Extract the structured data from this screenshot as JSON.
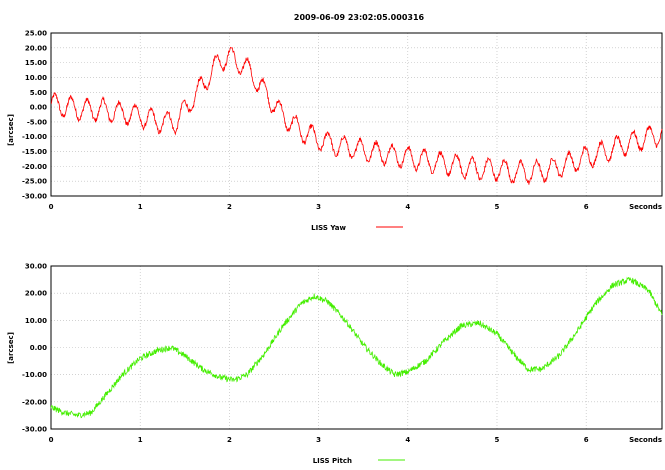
{
  "title": "2009-06-09 23:02:05.000316",
  "chart_data": [
    {
      "type": "line",
      "ylabel": "[arcsec]",
      "xlabel": "Seconds",
      "xlim": [
        0,
        6.85
      ],
      "ylim": [
        -30,
        25
      ],
      "x_ticks": [
        0,
        1,
        2,
        3,
        4,
        5,
        6
      ],
      "y_ticks": [
        "25.00",
        "20.00",
        "15.00",
        "10.00",
        "5.00",
        "0.00",
        "-5.00",
        "-10.00",
        "-15.00",
        "-20.00",
        "-25.00",
        "-30.00"
      ],
      "y_tick_values": [
        25,
        20,
        15,
        10,
        5,
        0,
        -5,
        -10,
        -15,
        -20,
        -25,
        -30
      ],
      "grid": true,
      "legend_position": "bottom-center",
      "series": [
        {
          "name": "LISS Yaw",
          "color": "#ff0000",
          "oscillation": {
            "period_s": 0.18,
            "amplitude": 3.5
          },
          "x": [
            0,
            0.2,
            0.4,
            0.6,
            0.8,
            1.0,
            1.2,
            1.4,
            1.6,
            1.8,
            1.9,
            2.0,
            2.2,
            2.4,
            2.6,
            2.8,
            3.0,
            3.2,
            3.4,
            3.6,
            3.8,
            4.0,
            4.2,
            4.4,
            4.6,
            4.8,
            5.0,
            5.2,
            5.4,
            5.6,
            5.8,
            6.0,
            6.2,
            6.4,
            6.6,
            6.85
          ],
          "values": [
            1,
            0,
            -1,
            -1,
            -2,
            -3,
            -5,
            -5,
            3,
            12,
            16,
            17,
            13,
            5,
            -3,
            -8,
            -11,
            -13,
            -14,
            -15,
            -16,
            -17,
            -18,
            -19,
            -20,
            -21,
            -21,
            -22,
            -22,
            -21,
            -19,
            -17,
            -15,
            -13,
            -11,
            -9
          ]
        }
      ]
    },
    {
      "type": "line",
      "ylabel": "[arcsec]",
      "xlabel": "Seconds",
      "xlim": [
        0,
        6.85
      ],
      "ylim": [
        -30,
        30
      ],
      "x_ticks": [
        0,
        1,
        2,
        3,
        4,
        5,
        6
      ],
      "y_ticks": [
        "30.00",
        "20.00",
        "10.00",
        "0.00",
        "-10.00",
        "-20.00",
        "-30.00"
      ],
      "y_tick_values": [
        30,
        20,
        10,
        0,
        -10,
        -20,
        -30
      ],
      "grid": true,
      "legend_position": "bottom-center",
      "series": [
        {
          "name": "LISS Pitch",
          "color": "#44ee00",
          "x": [
            0,
            0.15,
            0.3,
            0.45,
            0.6,
            0.8,
            1.0,
            1.2,
            1.35,
            1.5,
            1.7,
            1.9,
            2.05,
            2.2,
            2.4,
            2.6,
            2.8,
            2.95,
            3.1,
            3.3,
            3.5,
            3.7,
            3.85,
            4.0,
            4.2,
            4.4,
            4.6,
            4.8,
            5.0,
            5.2,
            5.35,
            5.5,
            5.7,
            5.9,
            6.1,
            6.3,
            6.5,
            6.7,
            6.85
          ],
          "values": [
            -22,
            -24,
            -25,
            -24,
            -18,
            -10,
            -4,
            -1,
            0,
            -3,
            -8,
            -11,
            -12,
            -10,
            -2,
            8,
            16,
            19,
            17,
            10,
            1,
            -6,
            -10,
            -9,
            -5,
            2,
            8,
            9,
            5,
            -3,
            -8,
            -8,
            -3,
            6,
            16,
            23,
            25,
            21,
            12
          ]
        }
      ]
    }
  ]
}
